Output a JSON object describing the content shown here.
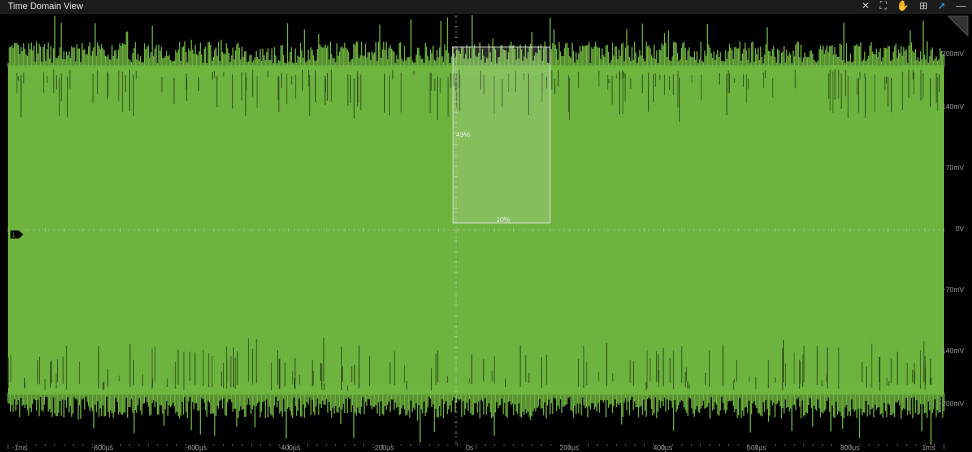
{
  "window": {
    "title": "Time Domain View"
  },
  "toolbar": {
    "icons": [
      "crosshair-icon",
      "fit-screen-icon",
      "hand-pan-icon",
      "zoom-box-icon",
      "select-pointer-icon",
      "minimize-icon"
    ]
  },
  "channel": {
    "marker_label": "1"
  },
  "selection": {
    "height_label": "49%",
    "width_label": "10%"
  },
  "y_axis": {
    "tick_labels": [
      "200mV",
      "140mV",
      "70mV",
      "0V",
      "-70mV",
      "-140mV",
      "-200mV"
    ],
    "ticks_mv": [
      200,
      140,
      70,
      0,
      -70,
      -140,
      -200
    ],
    "range_mv": [
      -245,
      245
    ]
  },
  "x_axis": {
    "tick_labels": [
      "-1ms",
      "-800µs",
      "-600µs",
      "-400µs",
      "-200µs",
      "0s",
      "200µs",
      "400µs",
      "600µs",
      "800µs",
      "1ms"
    ],
    "ticks_us": [
      -1000,
      -800,
      -600,
      -400,
      -200,
      0,
      200,
      400,
      600,
      800,
      1000
    ]
  },
  "waveform": {
    "color": "#6fb53f",
    "envelope_mv": [
      -200,
      200
    ]
  },
  "colors": {
    "trace": "#6fb53f",
    "grid": "#5a5a5a",
    "accent": "#2aa7ff"
  }
}
